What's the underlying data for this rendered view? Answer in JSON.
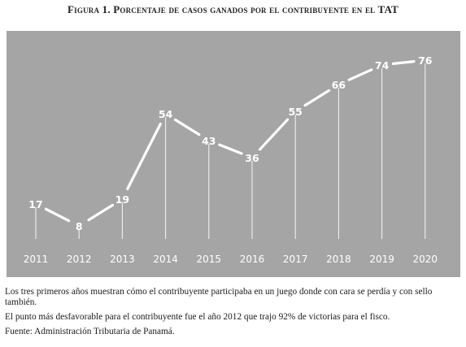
{
  "figure": {
    "title": "Figura 1. Porcentaje de casos ganados por el contribuyente en el TAT"
  },
  "chart_data": {
    "type": "line",
    "title": "Figura 1. Porcentaje de casos ganados por el contribuyente en el TAT",
    "x": [
      "2011",
      "2012",
      "2013",
      "2014",
      "2015",
      "2016",
      "2017",
      "2018",
      "2019",
      "2020"
    ],
    "values": [
      17,
      8,
      19,
      54,
      43,
      36,
      55,
      66,
      74,
      76
    ],
    "xlabel": "",
    "ylabel": "",
    "ylim": [
      0,
      80
    ],
    "grid": false,
    "legend": "none",
    "colors": {
      "background": "#a5a5a5",
      "line": "#ffffff",
      "labels": "#ffffff"
    }
  },
  "notes": {
    "line1": "Los tres primeros años muestran cómo el contribuyente participaba en un juego donde con cara se perdía y con sello también.",
    "line2": "El punto más desfavorable para el contribuyente fue el año 2012 que trajo 92% de victorias para el fisco.",
    "source": "Fuente: Administración Tributaria de Panamá."
  }
}
